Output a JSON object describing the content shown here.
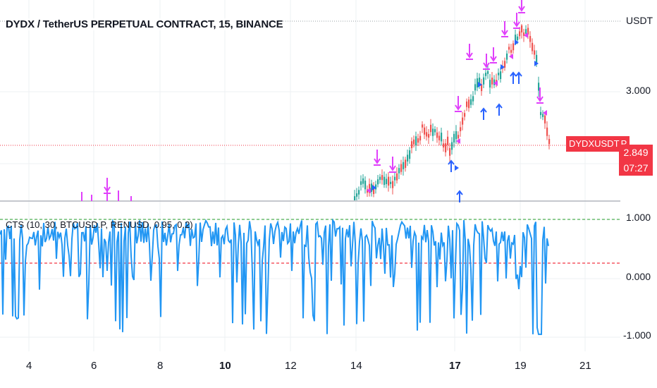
{
  "header": {
    "title": "DYDX / TetherUS PERPETUAL CONTRACT, 15, BINANCE"
  },
  "indicator": {
    "title": "CTS (10, 30, BTCUSD.P, RENUSD, 0.95, 0.2)"
  },
  "price_axis": {
    "currency": "USDT",
    "tick_3": "3.000"
  },
  "price_tag": {
    "symbol": "DYDXUSDT.P",
    "price": "2.849",
    "countdown": "07:27"
  },
  "osc_axis": {
    "ticks": [
      "1.000",
      "0.000",
      "-1.000"
    ]
  },
  "time_axis": {
    "labels": [
      {
        "text": "4",
        "bold": false
      },
      {
        "text": "6",
        "bold": false
      },
      {
        "text": "8",
        "bold": false
      },
      {
        "text": "10",
        "bold": true
      },
      {
        "text": "12",
        "bold": false
      },
      {
        "text": "14",
        "bold": false
      },
      {
        "text": "17",
        "bold": true
      },
      {
        "text": "19",
        "bold": false
      },
      {
        "text": "21",
        "bold": false
      }
    ]
  },
  "colors": {
    "up": "#26a69a",
    "down": "#ef5350",
    "sell_arrow": "#e040fb",
    "buy_arrow": "#2962ff",
    "oscillator": "#2196f3",
    "upper_line": "#4caf50",
    "lower_line": "#f23645",
    "price_line": "#f23645"
  },
  "chart_data": [
    {
      "type": "line",
      "title": "CTS (10, 30, BTCUSD.P, RENUSD, 0.95, 0.2)",
      "ylim": [
        -1.0,
        1.0
      ],
      "hlines": [
        0.95,
        0.2
      ],
      "y_ticks": [
        "1.000",
        "0.000",
        "-1.000"
      ],
      "x_ticks": [
        "4",
        "6",
        "8",
        "10",
        "12",
        "14",
        "17",
        "19",
        "21"
      ]
    },
    {
      "type": "candlestick",
      "title": "DYDX / TetherUS PERPETUAL CONTRACT, 15, BINANCE",
      "last_price": 2.849,
      "y_ticks": [
        "3.000"
      ]
    }
  ]
}
